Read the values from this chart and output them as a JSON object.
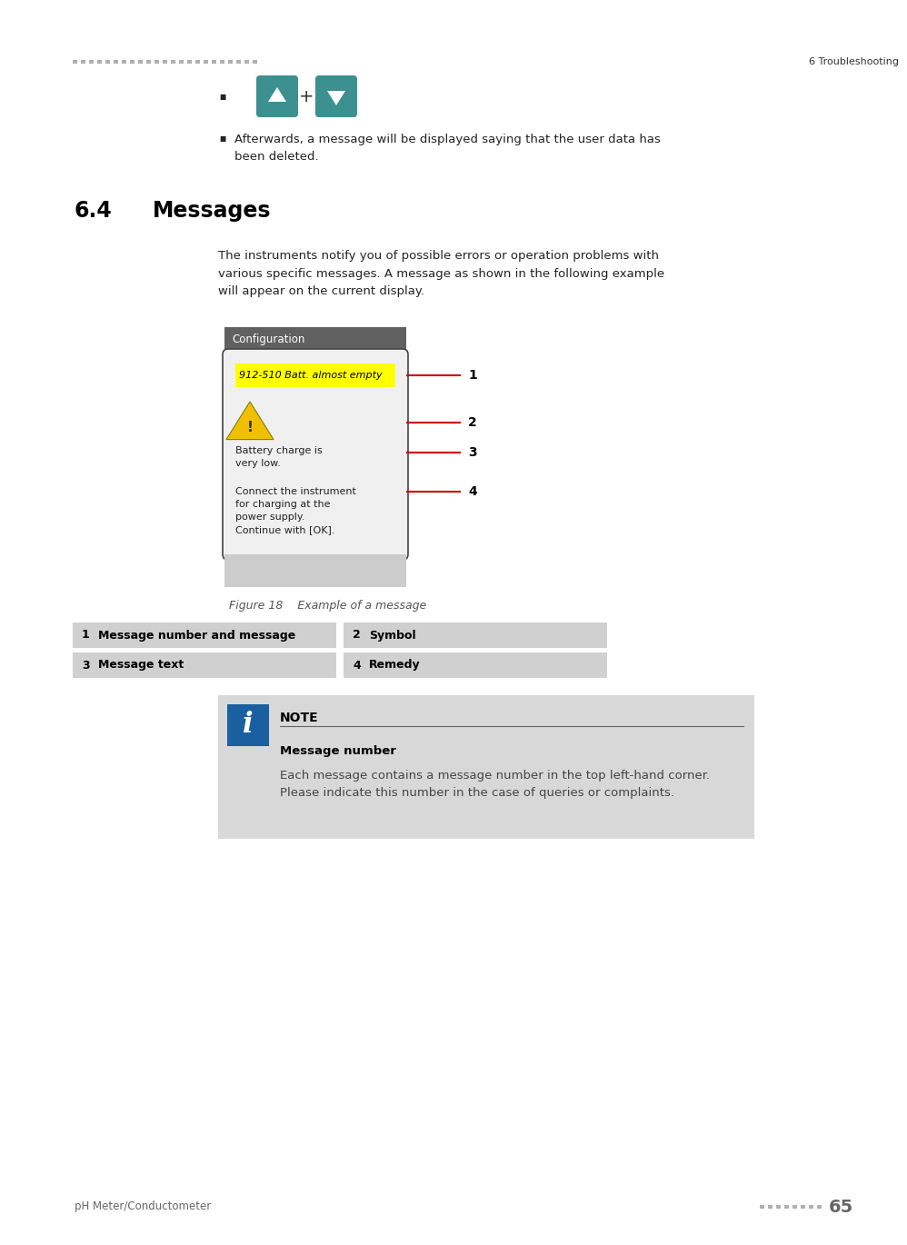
{
  "bg_color": "#ffffff",
  "header_dots_color": "#b0b0b0",
  "header_right_text": "6 Troubleshooting",
  "header_right_color": "#333333",
  "arrow_up_color": "#3d9090",
  "arrow_down_color": "#3d9090",
  "section_number": "6.4",
  "section_title": "Messages",
  "body_text": "The instruments notify you of possible errors or operation problems with\nvarious specific messages. A message as shown in the following example\nwill appear on the current display.",
  "config_header_color": "#606060",
  "config_header_text": "Configuration",
  "config_header_text_color": "#ffffff",
  "device_bg_color": "#e8e8e8",
  "device_border_color": "#444444",
  "msg_highlight_color": "#ffff00",
  "msg_text": "912-510 Batt. almost empty",
  "battery_text_line1": "Battery charge is",
  "battery_text_line2": "very low.",
  "remedy_text_line1": "Connect the instrument",
  "remedy_text_line2": "for charging at the",
  "remedy_text_line3": "power supply.",
  "remedy_text_line4": "Continue with [OK].",
  "figure_caption": "Figure 18    Example of a message",
  "table_bg": "#d0d0d0",
  "table_items": [
    [
      "1",
      "Message number and message",
      "2",
      "Symbol"
    ],
    [
      "3",
      "Message text",
      "4",
      "Remedy"
    ]
  ],
  "note_bg": "#d8d8d8",
  "note_icon_color": "#1a5fa0",
  "note_title": "NOTE",
  "note_subtitle": "Message number",
  "note_body": "Each message contains a message number in the top left-hand corner.\nPlease indicate this number in the case of queries or complaints.",
  "footer_dots_color": "#b0b0b0",
  "footer_left_text": "pH Meter/Conductometer",
  "footer_right_text": "65",
  "red_line_color": "#cc0000",
  "bullet_char": "■"
}
